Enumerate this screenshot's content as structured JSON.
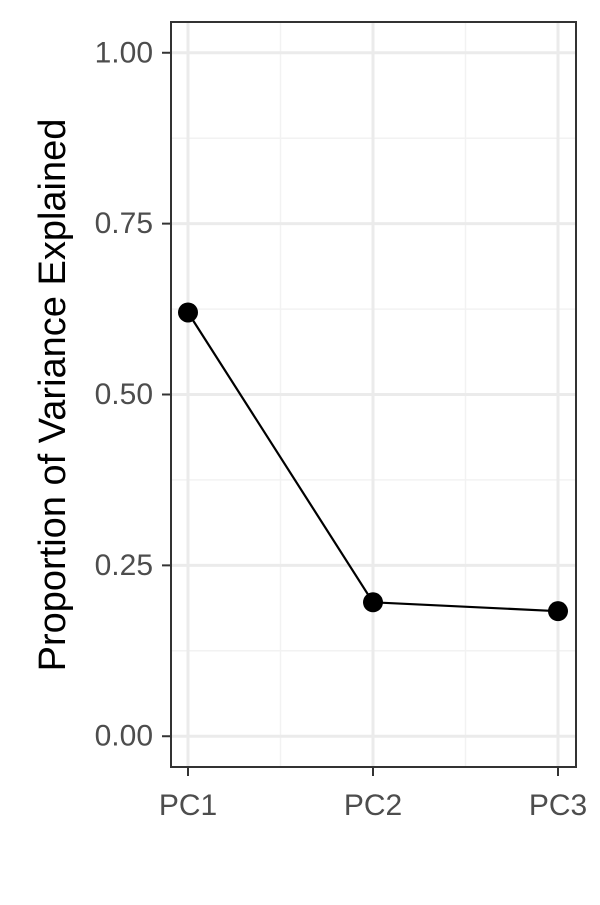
{
  "chart_data": {
    "type": "line",
    "title": "",
    "xlabel": "",
    "ylabel": "Proportion of Variance Explained",
    "categories": [
      "PC1",
      "PC2",
      "PC3"
    ],
    "series": [
      {
        "values": [
          0.62,
          0.196,
          0.183
        ]
      }
    ],
    "ylim": [
      -0.045,
      1.045
    ],
    "yticks": [
      0.0,
      0.25,
      0.5,
      0.75,
      1.0
    ],
    "ytick_labels": [
      "0.00",
      "0.25",
      "0.50",
      "0.75",
      "1.00"
    ],
    "grid": true,
    "markers": true,
    "legend": "none",
    "colors": {
      "series": "#000000",
      "grid_major": "#ebebeb",
      "grid_minor": "#f2f2f2",
      "panel_border": "#333333",
      "tick_text": "#4d4d4d"
    }
  }
}
